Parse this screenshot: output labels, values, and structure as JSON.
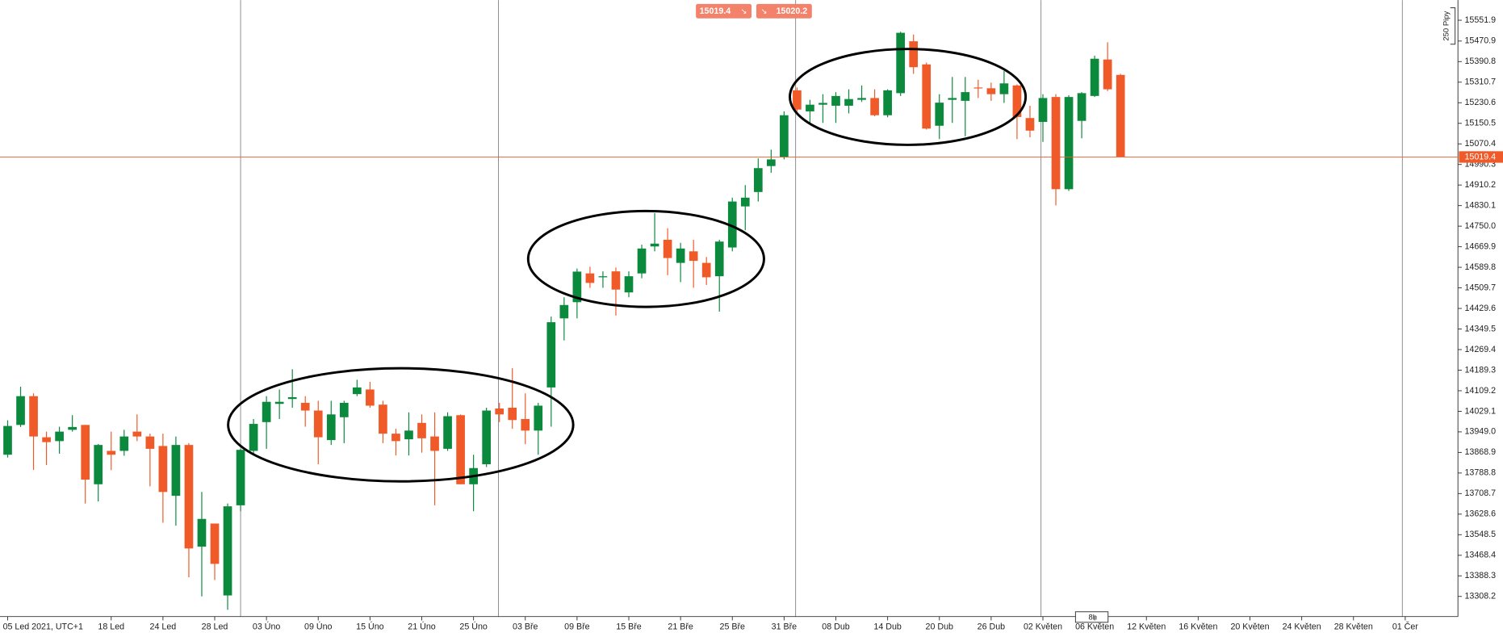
{
  "chart_data": {
    "type": "candlestick",
    "categories": [
      "05 Led 2021, UTC+1",
      null,
      null,
      null,
      null,
      null,
      null,
      null,
      "18 Led",
      null,
      null,
      null,
      "24 Led",
      null,
      null,
      null,
      "28 Led",
      null,
      null,
      null,
      "03 Úno",
      null,
      null,
      null,
      "09 Úno",
      null,
      null,
      null,
      "15 Úno",
      null,
      null,
      null,
      "21 Úno",
      null,
      null,
      null,
      "25 Úno",
      null,
      null,
      null,
      "03 Bře",
      null,
      null,
      null,
      "09 Bře",
      null,
      null,
      null,
      "15 Bře",
      null,
      null,
      null,
      "21 Bře",
      null,
      null,
      null,
      "25 Bře",
      null,
      null,
      null,
      "31 Bře",
      null,
      null,
      null,
      "08 Dub",
      null,
      null,
      null,
      "14 Dub",
      null,
      null,
      null,
      "20 Dub",
      null,
      null,
      null,
      "26 Dub",
      null,
      null,
      null,
      "02 Květen",
      null,
      null,
      null,
      "06 Květen",
      null,
      null,
      null,
      "12 Květen",
      null,
      null,
      null,
      "16 Květen",
      null,
      null,
      null,
      "20 Květen",
      null,
      null,
      null,
      "24 Květen",
      null,
      null,
      null,
      "28 Květen",
      null,
      null,
      null,
      "01 Čer"
    ],
    "open": [
      13860,
      13976,
      14088,
      13928,
      13913,
      13957,
      13976,
      13745,
      13875,
      13875,
      13950,
      13931,
      13894,
      13700,
      13898,
      13502,
      13592,
      13312,
      13663,
      13875,
      13987,
      14058,
      14077,
      14062,
      14032,
      13917,
      14006,
      14096,
      14114,
      14055,
      13942,
      13920,
      13984,
      13931,
      13883,
      14014,
      13745,
      13823,
      14040,
      14043,
      13999,
      13954,
      14122,
      14391,
      14454,
      14566,
      14551,
      14574,
      14492,
      14566,
      14671,
      14697,
      14607,
      14652,
      14607,
      14555,
      14667,
      14827,
      14883,
      14984,
      15018,
      15279,
      15197,
      15223,
      15219,
      15219,
      15242,
      15249,
      15182,
      15268,
      15470,
      15380,
      15141,
      15242,
      15238,
      15290,
      15287,
      15264,
      15298,
      15171,
      15156,
      15253,
      14894,
      15160,
      15257,
      15399,
      15339,
      null,
      null,
      null,
      null,
      null,
      null,
      null,
      null,
      null,
      null,
      null,
      null,
      null,
      null,
      null,
      null,
      null,
      null,
      null,
      null,
      null,
      null
    ],
    "high": [
      13994,
      14125,
      14099,
      13950,
      13969,
      14014,
      13976,
      13902,
      13950,
      13957,
      14017,
      13942,
      13942,
      13931,
      13905,
      13715,
      13592,
      13670,
      13883,
      13999,
      14088,
      14114,
      14193,
      14088,
      14070,
      14070,
      14070,
      14152,
      14144,
      14070,
      13961,
      14025,
      14017,
      14025,
      14025,
      14017,
      13860,
      14043,
      14062,
      14197,
      14099,
      14062,
      14398,
      14473,
      14585,
      14592,
      14574,
      14589,
      14574,
      14678,
      14801,
      14742,
      14685,
      14697,
      14630,
      14697,
      14861,
      14910,
      15014,
      15048,
      15197,
      15290,
      15242,
      15264,
      15272,
      15283,
      15298,
      15283,
      15283,
      15507,
      15496,
      15387,
      15264,
      15331,
      15331,
      15320,
      15309,
      15354,
      15302,
      15219,
      15264,
      15264,
      15260,
      15272,
      15414,
      15466,
      15343,
      null,
      null,
      null,
      null,
      null,
      null,
      null,
      null,
      null,
      null,
      null,
      null,
      null,
      null,
      null,
      null,
      null,
      null,
      null,
      null,
      null,
      null
    ],
    "low": [
      13849,
      13968,
      13801,
      13820,
      13864,
      13950,
      13670,
      13678,
      13800,
      13856,
      13913,
      13737,
      13595,
      13584,
      13383,
      13308,
      13372,
      13256,
      13640,
      13864,
      13883,
      13999,
      14043,
      13969,
      13823,
      13898,
      13905,
      14088,
      14043,
      13905,
      13857,
      13857,
      13868,
      13663,
      13875,
      13745,
      13640,
      13812,
      13987,
      13961,
      13901,
      13860,
      13969,
      14305,
      14391,
      14510,
      14510,
      14402,
      14473,
      14547,
      14652,
      14559,
      14532,
      14510,
      14521,
      14417,
      14652,
      14734,
      14846,
      14958,
      15010,
      15197,
      15152,
      15152,
      15152,
      15189,
      15234,
      15178,
      15174,
      15257,
      15343,
      15126,
      15089,
      15152,
      15100,
      15249,
      15238,
      15230,
      15089,
      15096,
      15078,
      14831,
      14887,
      15092,
      15253,
      15276,
      15019,
      null,
      null,
      null,
      null,
      null,
      null,
      null,
      null,
      null,
      null,
      null,
      null,
      null,
      null,
      null,
      null,
      null,
      null,
      null,
      null,
      null,
      null
    ],
    "close": [
      13972,
      14088,
      13931,
      13909,
      13950,
      13968,
      13763,
      13898,
      13860,
      13931,
      13931,
      13883,
      13715,
      13898,
      13495,
      13610,
      13435,
      13659,
      13879,
      13980,
      14066,
      14066,
      14084,
      14032,
      13928,
      14017,
      14062,
      14122,
      14051,
      13942,
      13913,
      13954,
      13924,
      13875,
      14010,
      13745,
      13808,
      14032,
      14017,
      13995,
      13954,
      14051,
      14376,
      14443,
      14573,
      14529,
      14555,
      14503,
      14555,
      14663,
      14682,
      14626,
      14663,
      14615,
      14551,
      14690,
      14846,
      14861,
      14976,
      15010,
      15182,
      15204,
      15223,
      15230,
      15257,
      15245,
      15249,
      15182,
      15279,
      15503,
      15369,
      15130,
      15231,
      15249,
      15272,
      15287,
      15264,
      15306,
      15175,
      15122,
      15249,
      14894,
      15253,
      15268,
      15402,
      15283,
      15019.4,
      null,
      null,
      null,
      null,
      null,
      null,
      null,
      null,
      null,
      null,
      null,
      null,
      null,
      null,
      null,
      null,
      null,
      null,
      null,
      null,
      null,
      null
    ],
    "up_color": "#0b8a3e",
    "down_color": "#f05a28",
    "ylim": [
      13233.5,
      15630.3
    ],
    "yticks": [
      15551.9,
      15470.9,
      15390.8,
      15310.7,
      15230.6,
      15150.5,
      15070.4,
      14990.3,
      14910.2,
      14830.1,
      {
        "value": 14750,
        "label": "14750.0"
      },
      14669.9,
      14589.8,
      14509.7,
      14429.6,
      14349.5,
      14269.4,
      14189.3,
      14109.2,
      14029.1,
      {
        "value": 13949,
        "label": "13949.0"
      },
      13868.9,
      13788.8,
      13708.7,
      13628.6,
      13548.5,
      13468.4,
      13388.3,
      13308.2
    ],
    "price_line": 15019.4,
    "buy_price": 15020.2,
    "scale_label": "250 Pipy",
    "timeframe": "8h"
  }
}
